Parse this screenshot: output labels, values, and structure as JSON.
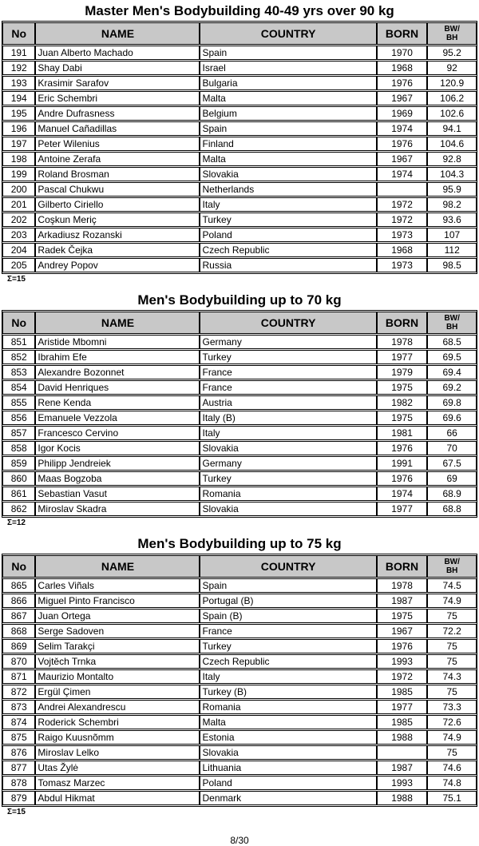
{
  "page": {
    "footer": "8/30"
  },
  "columns": {
    "no": "No",
    "name": "NAME",
    "country": "COUNTRY",
    "born": "BORN",
    "bw_bh": "BW/\nBH"
  },
  "tables": [
    {
      "title": "Master Men's Bodybuilding 40-49 yrs over 90 kg",
      "sum": "Σ=15",
      "rows": [
        [
          "191",
          "Juan Alberto Machado",
          "Spain",
          "1970",
          "95.2"
        ],
        [
          "192",
          "Shay Dabi",
          "Israel",
          "1968",
          "92"
        ],
        [
          "193",
          "Krasimir Sarafov",
          "Bulgaria",
          "1976",
          "120.9"
        ],
        [
          "194",
          "Eric Schembri",
          "Malta",
          "1967",
          "106.2"
        ],
        [
          "195",
          "Andre Dufrasness",
          "Belgium",
          "1969",
          "102.6"
        ],
        [
          "196",
          "Manuel Cañadillas",
          "Spain",
          "1974",
          "94.1"
        ],
        [
          "197",
          "Peter Wilenius",
          "Finland",
          "1976",
          "104.6"
        ],
        [
          "198",
          "Antoine Zerafa",
          "Malta",
          "1967",
          "92.8"
        ],
        [
          "199",
          "Roland Brosman",
          "Slovakia",
          "1974",
          "104.3"
        ],
        [
          "200",
          "Pascal Chukwu",
          "Netherlands",
          "",
          "95.9"
        ],
        [
          "201",
          "Gilberto Ciriello",
          "Italy",
          "1972",
          "98.2"
        ],
        [
          "202",
          "Coşkun Meriç",
          "Turkey",
          "1972",
          "93.6"
        ],
        [
          "203",
          "Arkadiusz Rozanski",
          "Poland",
          "1973",
          "107"
        ],
        [
          "204",
          "Radek Čejka",
          "Czech Republic",
          "1968",
          "112"
        ],
        [
          "205",
          "Andrey Popov",
          "Russia",
          "1973",
          "98.5"
        ]
      ]
    },
    {
      "title": "Men's Bodybuilding up to 70 kg",
      "sum": "Σ=12",
      "rows": [
        [
          "851",
          "Aristide Mbomni",
          "Germany",
          "1978",
          "68.5"
        ],
        [
          "852",
          "Ibrahim Efe",
          "Turkey",
          "1977",
          "69.5"
        ],
        [
          "853",
          "Alexandre Bozonnet",
          "France",
          "1979",
          "69.4"
        ],
        [
          "854",
          "David Henriques",
          "France",
          "1975",
          "69.2"
        ],
        [
          "855",
          "Rene Kenda",
          "Austria",
          "1982",
          "69.8"
        ],
        [
          "856",
          "Emanuele Vezzola",
          "Italy (B)",
          "1975",
          "69.6"
        ],
        [
          "857",
          "Francesco Cervino",
          "Italy",
          "1981",
          "66"
        ],
        [
          "858",
          "Igor Kocis",
          "Slovakia",
          "1976",
          "70"
        ],
        [
          "859",
          "Philipp Jendreiek",
          "Germany",
          "1991",
          "67.5"
        ],
        [
          "860",
          "Maas Bogzoba",
          "Turkey",
          "1976",
          "69"
        ],
        [
          "861",
          "Sebastian Vasut",
          "Romania",
          "1974",
          "68.9"
        ],
        [
          "862",
          "Miroslav Skadra",
          "Slovakia",
          "1977",
          "68.8"
        ]
      ]
    },
    {
      "title": "Men's Bodybuilding up to 75 kg",
      "sum": "Σ=15",
      "rows": [
        [
          "865",
          "Carles Viñals",
          "Spain",
          "1978",
          "74.5"
        ],
        [
          "866",
          "Miguel Pinto Francisco",
          "Portugal (B)",
          "1987",
          "74.9"
        ],
        [
          "867",
          "Juan Ortega",
          "Spain (B)",
          "1975",
          "75"
        ],
        [
          "868",
          "Serge Sadoven",
          "France",
          "1967",
          "72.2"
        ],
        [
          "869",
          "Selim Tarakçi",
          "Turkey",
          "1976",
          "75"
        ],
        [
          "870",
          "Vojtěch Trnka",
          "Czech Republic",
          "1993",
          "75"
        ],
        [
          "871",
          "Maurizio Montalto",
          "Italy",
          "1972",
          "74.3"
        ],
        [
          "872",
          "Ergül Çimen",
          "Turkey (B)",
          "1985",
          "75"
        ],
        [
          "873",
          "Andrei Alexandrescu",
          "Romania",
          "1977",
          "73.3"
        ],
        [
          "874",
          "Roderick Schembri",
          "Malta",
          "1985",
          "72.6"
        ],
        [
          "875",
          "Raigo Kuusnõmm",
          "Estonia",
          "1988",
          "74.9"
        ],
        [
          "876",
          "Miroslav Lelko",
          "Slovakia",
          "",
          "75"
        ],
        [
          "877",
          "Utas Žylė",
          "Lithuania",
          "1987",
          "74.6"
        ],
        [
          "878",
          "Tomasz Marzec",
          "Poland",
          "1993",
          "74.8"
        ],
        [
          "879",
          "Abdul Hikmat",
          "Denmark",
          "1988",
          "75.1"
        ]
      ]
    }
  ]
}
